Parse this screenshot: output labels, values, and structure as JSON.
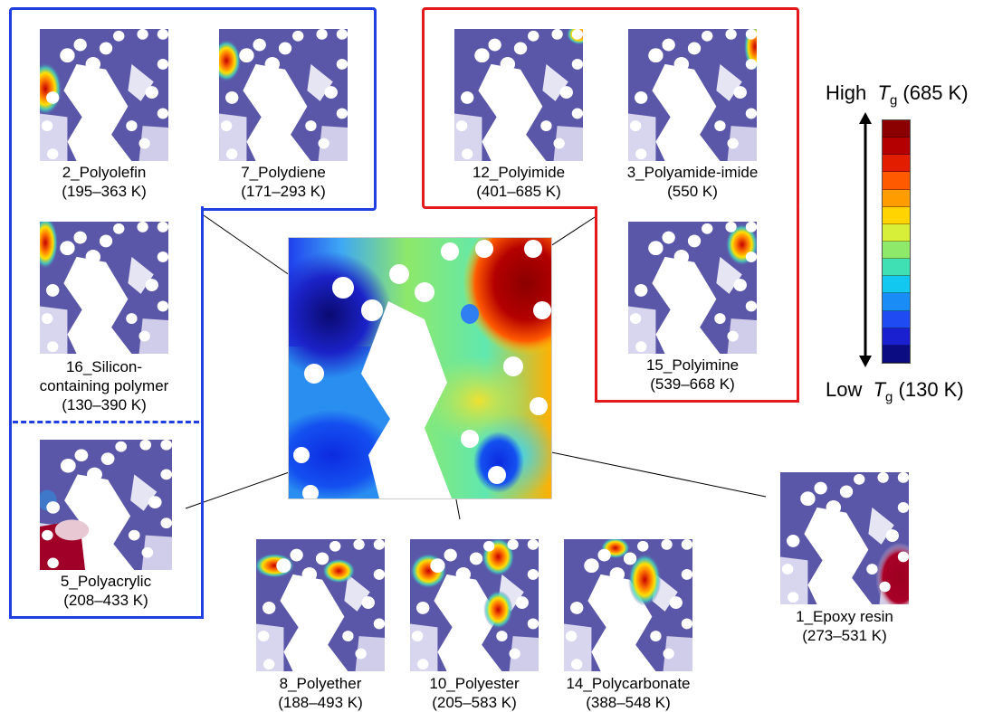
{
  "colors": {
    "blue_group": "#1f3fe0",
    "red_group": "#e3191b",
    "map_purple": "#5b57a8",
    "map_hole": "#ffffff"
  },
  "legend": {
    "high_prefix": "High",
    "high_symbol": "T",
    "high_sub": "g",
    "high_value": "(685 K)",
    "low_prefix": "Low",
    "low_symbol": "T",
    "low_sub": "g",
    "low_value": "(130 K)",
    "colorbar_colors": [
      "#8b0000",
      "#b40000",
      "#e21d00",
      "#ff5a00",
      "#ff9d00",
      "#ffd400",
      "#d8ef3a",
      "#8ee86a",
      "#3fe0b4",
      "#12c7f0",
      "#1a8cf5",
      "#1f4cf2",
      "#1a1fd0",
      "#0c0c82"
    ]
  },
  "polymers": [
    {
      "id": "polyolefin",
      "label": "2_Polyolefin",
      "range": "(195–363 K)"
    },
    {
      "id": "polydiene",
      "label": "7_Polydiene",
      "range": "(171–293 K)"
    },
    {
      "id": "silicon",
      "label_line1": "16_Silicon-",
      "label_line2": "containing polymer",
      "range": "(130–390 K)"
    },
    {
      "id": "polyacrylic",
      "label": "5_Polyacrylic",
      "range": "(208–433 K)"
    },
    {
      "id": "polyimide",
      "label": "12_Polyimide",
      "range": "(401–685 K)"
    },
    {
      "id": "polyamideimide",
      "label": "3_Polyamide-imide",
      "range": "(550 K)"
    },
    {
      "id": "polyimine",
      "label": "15_Polyimine",
      "range": "(539–668 K)"
    },
    {
      "id": "polyether",
      "label": "8_Polyether",
      "range": "(188–493 K)"
    },
    {
      "id": "polyester",
      "label": "10_Polyester",
      "range": "(205–583 K)"
    },
    {
      "id": "polycarbonate",
      "label": "14_Polycarbonate",
      "range": "(388–548 K)"
    },
    {
      "id": "epoxy",
      "label": "1_Epoxy resin",
      "range": "(273–531 K)"
    }
  ]
}
